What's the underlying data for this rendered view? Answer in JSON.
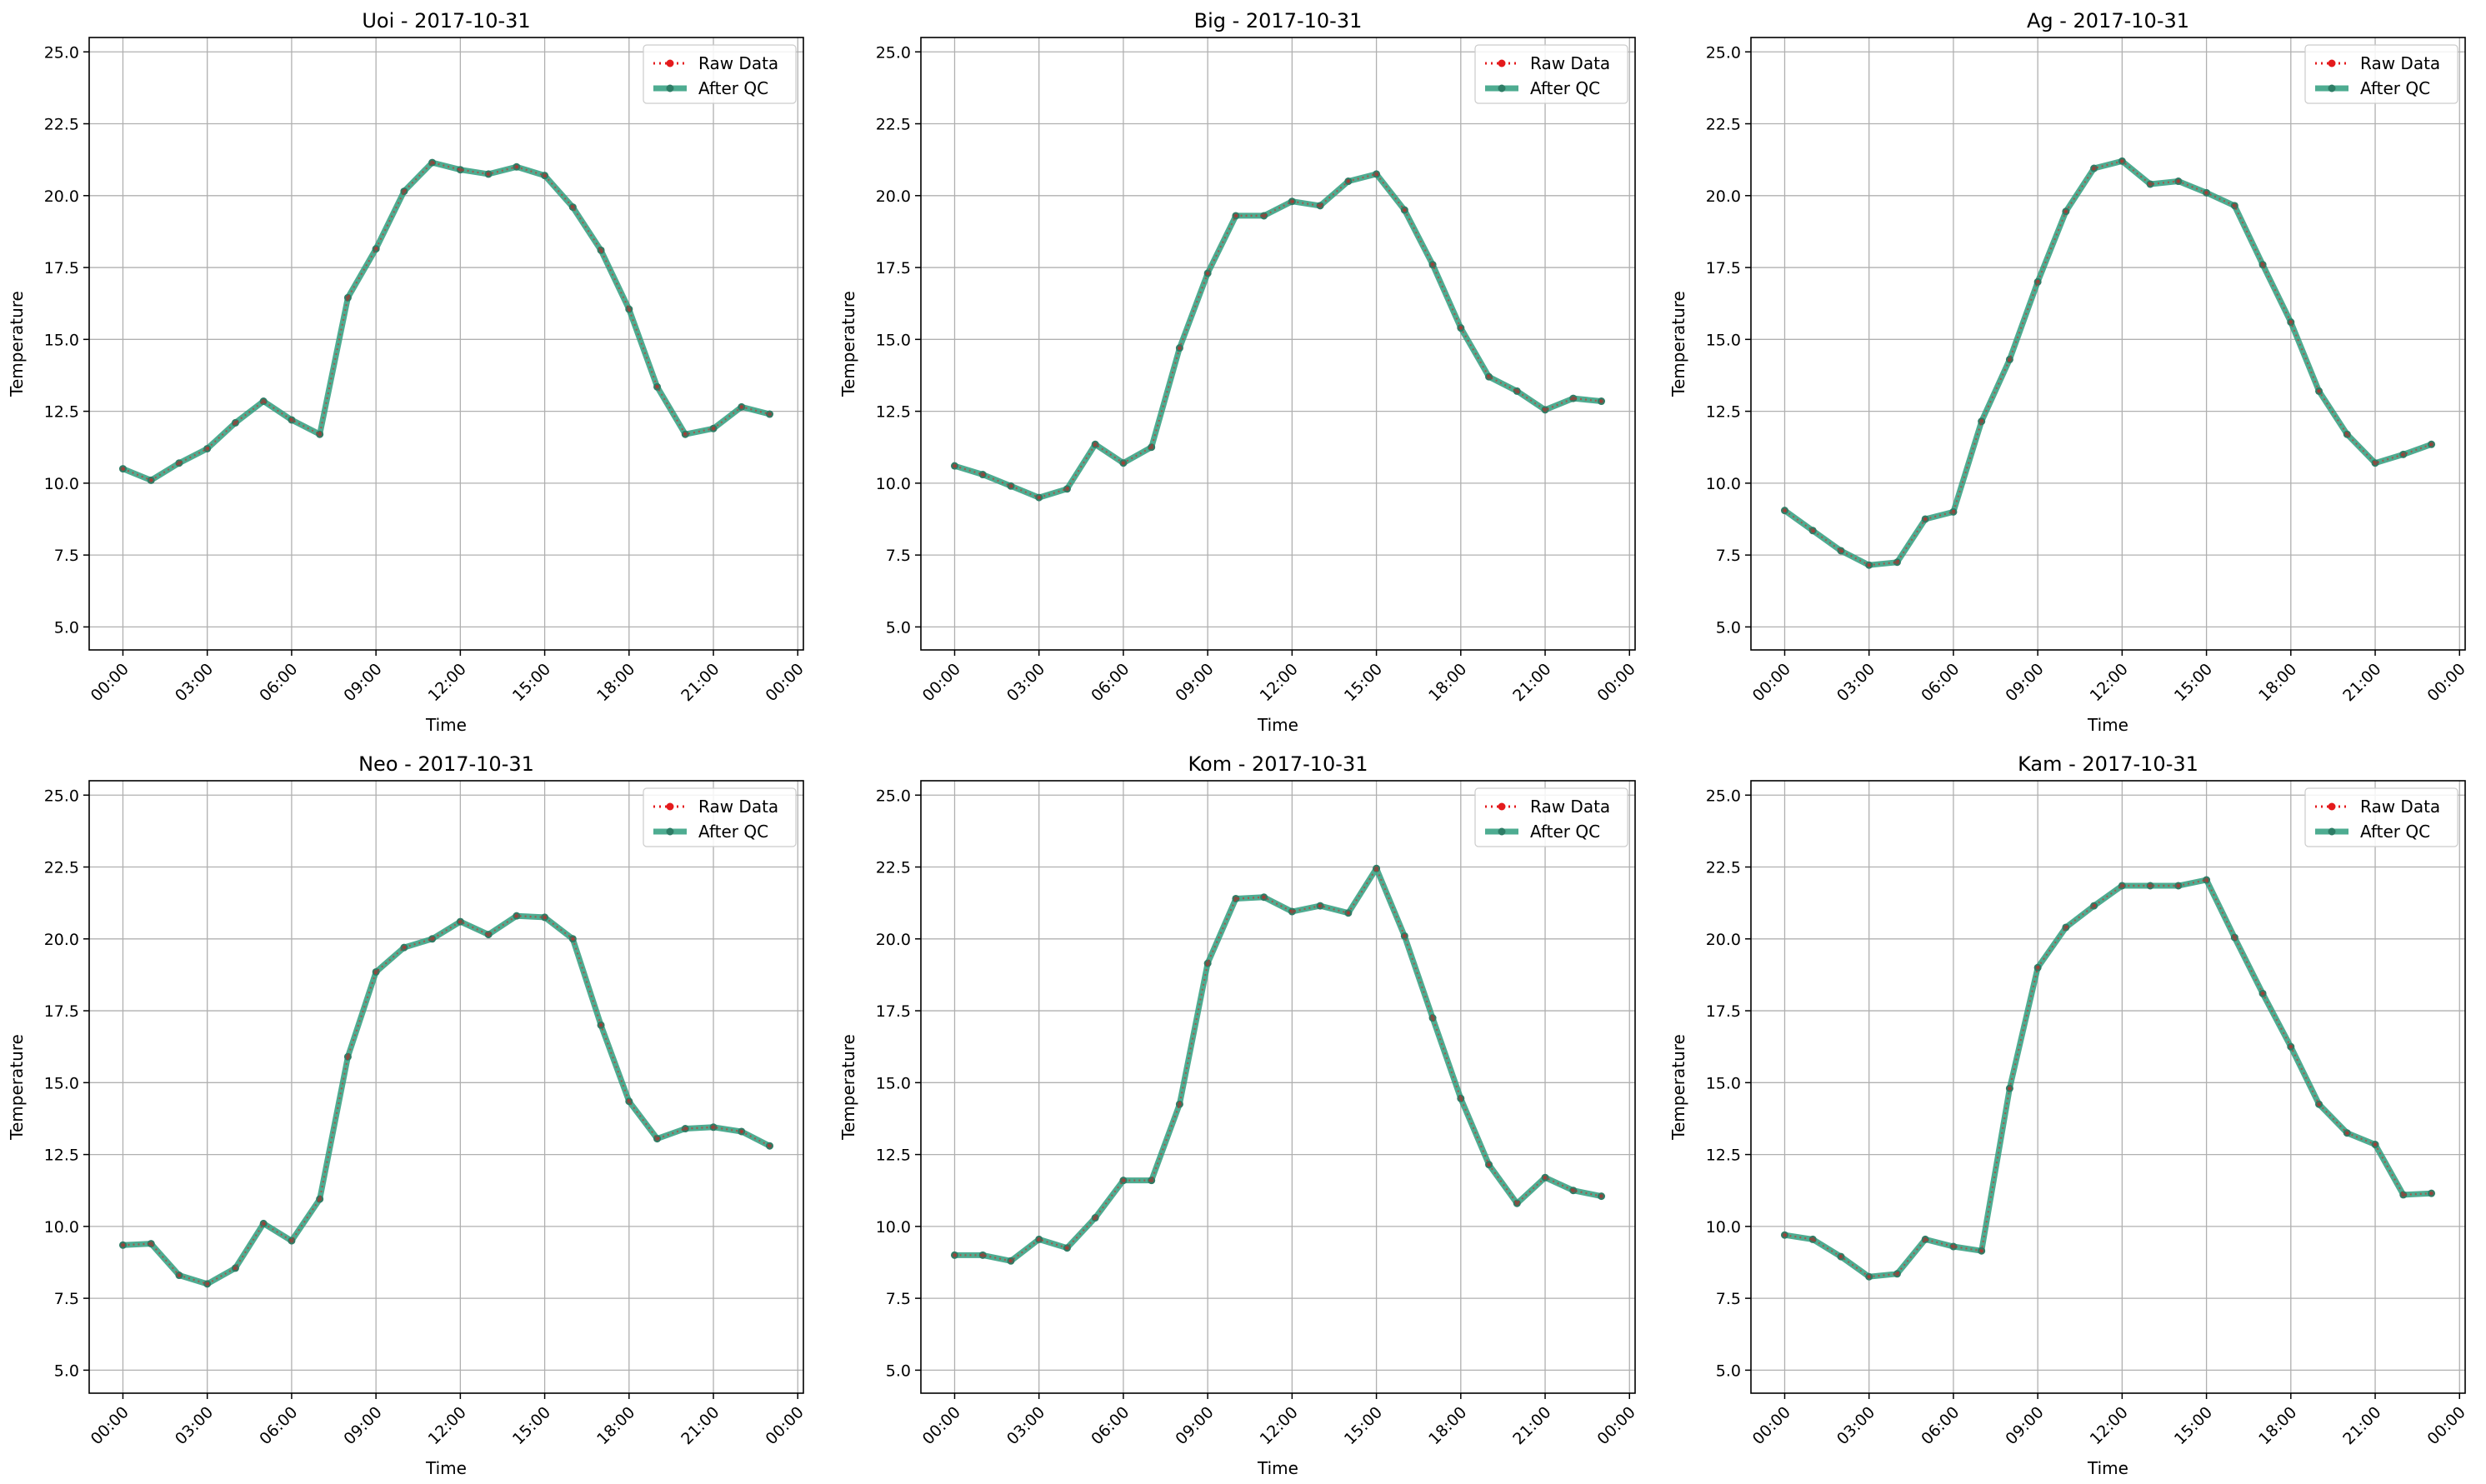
{
  "colors": {
    "raw": "#e41a1c",
    "after_qc": "#2f9e7e",
    "after_qc_marker": "#2e7d66",
    "grid": "#b0b0b0",
    "frame": "#000000"
  },
  "chart_data": [
    {
      "type": "line",
      "title": "Uoi - 2017-10-31",
      "xlabel": "Time",
      "ylabel": "Temperature",
      "x_ticks": [
        "00:00",
        "03:00",
        "06:00",
        "09:00",
        "12:00",
        "15:00",
        "18:00",
        "21:00",
        "00:00"
      ],
      "y_ticks": [
        "5.0",
        "7.5",
        "10.0",
        "12.5",
        "15.0",
        "17.5",
        "20.0",
        "22.5",
        "25.0"
      ],
      "ylim": [
        4.2,
        25.5
      ],
      "xlim_hours": [
        -1.2,
        24.2
      ],
      "grid": true,
      "legend_placement": "top-right",
      "x_hours": [
        0,
        1,
        2,
        3,
        4,
        5,
        6,
        7,
        8,
        9,
        10,
        11,
        12,
        13,
        14,
        15,
        16,
        17,
        18,
        19,
        20,
        21,
        22,
        23
      ],
      "series": [
        {
          "name": "Raw Data",
          "style": "dotted-marker",
          "values": [
            10.5,
            10.1,
            10.7,
            11.2,
            12.1,
            12.85,
            12.2,
            11.7,
            16.45,
            18.15,
            20.15,
            21.15,
            20.9,
            20.75,
            21.0,
            20.7,
            19.6,
            18.1,
            16.05,
            13.35,
            11.7,
            11.9,
            12.65,
            12.4
          ]
        },
        {
          "name": "After QC",
          "style": "solid-marker",
          "values": [
            10.5,
            10.1,
            10.7,
            11.2,
            12.1,
            12.85,
            12.2,
            11.7,
            16.45,
            18.15,
            20.15,
            21.15,
            20.9,
            20.75,
            21.0,
            20.7,
            19.6,
            18.1,
            16.05,
            13.35,
            11.7,
            11.9,
            12.65,
            12.4
          ]
        }
      ]
    },
    {
      "type": "line",
      "title": "Big - 2017-10-31",
      "xlabel": "Time",
      "ylabel": "Temperature",
      "x_ticks": [
        "00:00",
        "03:00",
        "06:00",
        "09:00",
        "12:00",
        "15:00",
        "18:00",
        "21:00",
        "00:00"
      ],
      "y_ticks": [
        "5.0",
        "7.5",
        "10.0",
        "12.5",
        "15.0",
        "17.5",
        "20.0",
        "22.5",
        "25.0"
      ],
      "ylim": [
        4.2,
        25.5
      ],
      "xlim_hours": [
        -1.2,
        24.2
      ],
      "grid": true,
      "legend_placement": "top-right",
      "x_hours": [
        0,
        1,
        2,
        3,
        4,
        5,
        6,
        7,
        8,
        9,
        10,
        11,
        12,
        13,
        14,
        15,
        16,
        17,
        18,
        19,
        20,
        21,
        22,
        23
      ],
      "series": [
        {
          "name": "Raw Data",
          "style": "dotted-marker",
          "values": [
            10.6,
            10.3,
            9.9,
            9.5,
            9.8,
            11.35,
            10.7,
            11.25,
            14.7,
            17.3,
            19.3,
            19.3,
            19.8,
            19.65,
            20.5,
            20.75,
            19.5,
            17.6,
            15.4,
            13.7,
            13.2,
            12.55,
            12.95,
            12.85
          ]
        },
        {
          "name": "After QC",
          "style": "solid-marker",
          "values": [
            10.6,
            10.3,
            9.9,
            9.5,
            9.8,
            11.35,
            10.7,
            11.25,
            14.7,
            17.3,
            19.3,
            19.3,
            19.8,
            19.65,
            20.5,
            20.75,
            19.5,
            17.6,
            15.4,
            13.7,
            13.2,
            12.55,
            12.95,
            12.85
          ]
        }
      ]
    },
    {
      "type": "line",
      "title": "Ag - 2017-10-31",
      "xlabel": "Time",
      "ylabel": "Temperature",
      "x_ticks": [
        "00:00",
        "03:00",
        "06:00",
        "09:00",
        "12:00",
        "15:00",
        "18:00",
        "21:00",
        "00:00"
      ],
      "y_ticks": [
        "5.0",
        "7.5",
        "10.0",
        "12.5",
        "15.0",
        "17.5",
        "20.0",
        "22.5",
        "25.0"
      ],
      "ylim": [
        4.2,
        25.5
      ],
      "xlim_hours": [
        -1.2,
        24.2
      ],
      "grid": true,
      "legend_placement": "top-right",
      "x_hours": [
        0,
        1,
        2,
        3,
        4,
        5,
        6,
        7,
        8,
        9,
        10,
        11,
        12,
        13,
        14,
        15,
        16,
        17,
        18,
        19,
        20,
        21,
        22,
        23
      ],
      "series": [
        {
          "name": "Raw Data",
          "style": "dotted-marker",
          "values": [
            9.05,
            8.35,
            7.65,
            7.15,
            7.25,
            8.75,
            9.0,
            12.15,
            14.3,
            17.0,
            19.45,
            20.95,
            21.2,
            20.4,
            20.5,
            20.1,
            19.65,
            17.6,
            15.6,
            13.2,
            11.7,
            10.7,
            11.0,
            11.35
          ]
        },
        {
          "name": "After QC",
          "style": "solid-marker",
          "values": [
            9.05,
            8.35,
            7.65,
            7.15,
            7.25,
            8.75,
            9.0,
            12.15,
            14.3,
            17.0,
            19.45,
            20.95,
            21.2,
            20.4,
            20.5,
            20.1,
            19.65,
            17.6,
            15.6,
            13.2,
            11.7,
            10.7,
            11.0,
            11.35
          ]
        }
      ]
    },
    {
      "type": "line",
      "title": "Neo - 2017-10-31",
      "xlabel": "Time",
      "ylabel": "Temperature",
      "x_ticks": [
        "00:00",
        "03:00",
        "06:00",
        "09:00",
        "12:00",
        "15:00",
        "18:00",
        "21:00",
        "00:00"
      ],
      "y_ticks": [
        "5.0",
        "7.5",
        "10.0",
        "12.5",
        "15.0",
        "17.5",
        "20.0",
        "22.5",
        "25.0"
      ],
      "ylim": [
        4.2,
        25.5
      ],
      "xlim_hours": [
        -1.2,
        24.2
      ],
      "grid": true,
      "legend_placement": "top-right",
      "x_hours": [
        0,
        1,
        2,
        3,
        4,
        5,
        6,
        7,
        8,
        9,
        10,
        11,
        12,
        13,
        14,
        15,
        16,
        17,
        18,
        19,
        20,
        21,
        22,
        23
      ],
      "series": [
        {
          "name": "Raw Data",
          "style": "dotted-marker",
          "values": [
            9.35,
            9.4,
            8.3,
            8.0,
            8.55,
            10.1,
            9.5,
            10.95,
            15.9,
            18.85,
            19.7,
            20.0,
            20.6,
            20.15,
            20.8,
            20.75,
            20.0,
            17.0,
            14.35,
            13.05,
            13.4,
            13.45,
            13.3,
            12.8
          ]
        },
        {
          "name": "After QC",
          "style": "solid-marker",
          "values": [
            9.35,
            9.4,
            8.3,
            8.0,
            8.55,
            10.1,
            9.5,
            10.95,
            15.9,
            18.85,
            19.7,
            20.0,
            20.6,
            20.15,
            20.8,
            20.75,
            20.0,
            17.0,
            14.35,
            13.05,
            13.4,
            13.45,
            13.3,
            12.8
          ]
        }
      ]
    },
    {
      "type": "line",
      "title": "Kom - 2017-10-31",
      "xlabel": "Time",
      "ylabel": "Temperature",
      "x_ticks": [
        "00:00",
        "03:00",
        "06:00",
        "09:00",
        "12:00",
        "15:00",
        "18:00",
        "21:00",
        "00:00"
      ],
      "y_ticks": [
        "5.0",
        "7.5",
        "10.0",
        "12.5",
        "15.0",
        "17.5",
        "20.0",
        "22.5",
        "25.0"
      ],
      "ylim": [
        4.2,
        25.5
      ],
      "xlim_hours": [
        -1.2,
        24.2
      ],
      "grid": true,
      "legend_placement": "top-right",
      "x_hours": [
        0,
        1,
        2,
        3,
        4,
        5,
        6,
        7,
        8,
        9,
        10,
        11,
        12,
        13,
        14,
        15,
        16,
        17,
        18,
        19,
        20,
        21,
        22,
        23
      ],
      "series": [
        {
          "name": "Raw Data",
          "style": "dotted-marker",
          "values": [
            9.0,
            9.0,
            8.8,
            9.55,
            9.25,
            10.3,
            11.6,
            11.6,
            14.25,
            19.15,
            21.4,
            21.45,
            20.95,
            21.15,
            20.9,
            22.45,
            20.1,
            17.25,
            14.45,
            12.15,
            10.8,
            11.7,
            11.25,
            11.05
          ]
        },
        {
          "name": "After QC",
          "style": "solid-marker",
          "values": [
            9.0,
            9.0,
            8.8,
            9.55,
            9.25,
            10.3,
            11.6,
            11.6,
            14.25,
            19.15,
            21.4,
            21.45,
            20.95,
            21.15,
            20.9,
            22.45,
            20.1,
            17.25,
            14.45,
            12.15,
            10.8,
            11.7,
            11.25,
            11.05
          ]
        }
      ]
    },
    {
      "type": "line",
      "title": "Kam - 2017-10-31",
      "xlabel": "Time",
      "ylabel": "Temperature",
      "x_ticks": [
        "00:00",
        "03:00",
        "06:00",
        "09:00",
        "12:00",
        "15:00",
        "18:00",
        "21:00",
        "00:00"
      ],
      "y_ticks": [
        "5.0",
        "7.5",
        "10.0",
        "12.5",
        "15.0",
        "17.5",
        "20.0",
        "22.5",
        "25.0"
      ],
      "ylim": [
        4.2,
        25.5
      ],
      "xlim_hours": [
        -1.2,
        24.2
      ],
      "grid": true,
      "legend_placement": "top-right",
      "x_hours": [
        0,
        1,
        2,
        3,
        4,
        5,
        6,
        7,
        8,
        9,
        10,
        11,
        12,
        13,
        14,
        15,
        16,
        17,
        18,
        19,
        20,
        21,
        22,
        23
      ],
      "series": [
        {
          "name": "Raw Data",
          "style": "dotted-marker",
          "values": [
            9.7,
            9.55,
            8.95,
            8.25,
            8.35,
            9.55,
            9.3,
            9.15,
            14.8,
            19.0,
            20.4,
            21.15,
            21.85,
            21.85,
            21.85,
            22.05,
            20.05,
            18.1,
            16.25,
            14.25,
            13.25,
            12.85,
            11.1,
            11.15
          ]
        },
        {
          "name": "After QC",
          "style": "solid-marker",
          "values": [
            9.7,
            9.55,
            8.95,
            8.25,
            8.35,
            9.55,
            9.3,
            9.15,
            14.8,
            19.0,
            20.4,
            21.15,
            21.85,
            21.85,
            21.85,
            22.05,
            20.05,
            18.1,
            16.25,
            14.25,
            13.25,
            12.85,
            11.1,
            11.15
          ]
        }
      ]
    }
  ]
}
